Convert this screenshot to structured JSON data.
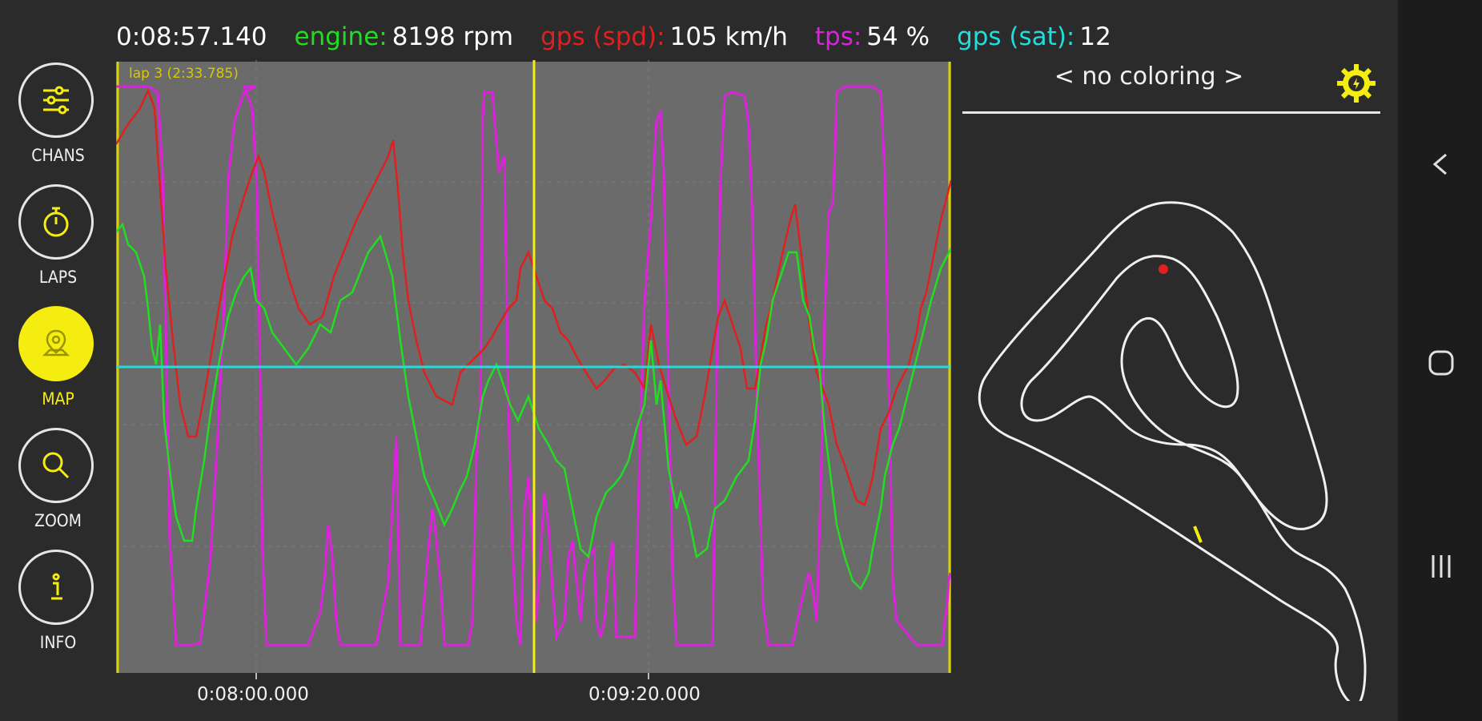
{
  "header": {
    "time": "0:08:57.140",
    "engine_label": "engine:",
    "engine_value": "8198 rpm",
    "gps_spd_label": "gps (spd):",
    "gps_spd_value": "105 km/h",
    "tps_label": "tps:",
    "tps_value": "54 %",
    "gps_sat_label": "gps (sat):",
    "gps_sat_value": "12"
  },
  "colors": {
    "engine": "#22dd22",
    "gps_spd": "#e02020",
    "tps": "#dd22dd",
    "gps_sat": "#22dddd",
    "accent": "#f5ec10"
  },
  "sidebar": {
    "items": [
      {
        "label": "CHANS",
        "icon": "sliders-icon",
        "active": false
      },
      {
        "label": "LAPS",
        "icon": "stopwatch-icon",
        "active": false
      },
      {
        "label": "MAP",
        "icon": "map-pin-icon",
        "active": true
      },
      {
        "label": "ZOOM",
        "icon": "magnifier-icon",
        "active": false
      },
      {
        "label": "INFO",
        "icon": "info-icon",
        "active": false
      }
    ]
  },
  "chart": {
    "lap_label": "lap 3  (2:33.785)",
    "x_ticks": [
      "0:08:00.000",
      "0:09:20.000"
    ]
  },
  "map": {
    "coloring": "< no coloring >"
  },
  "system_nav": {
    "back": "back-icon",
    "home": "home-icon",
    "recents": "recents-icon"
  }
}
